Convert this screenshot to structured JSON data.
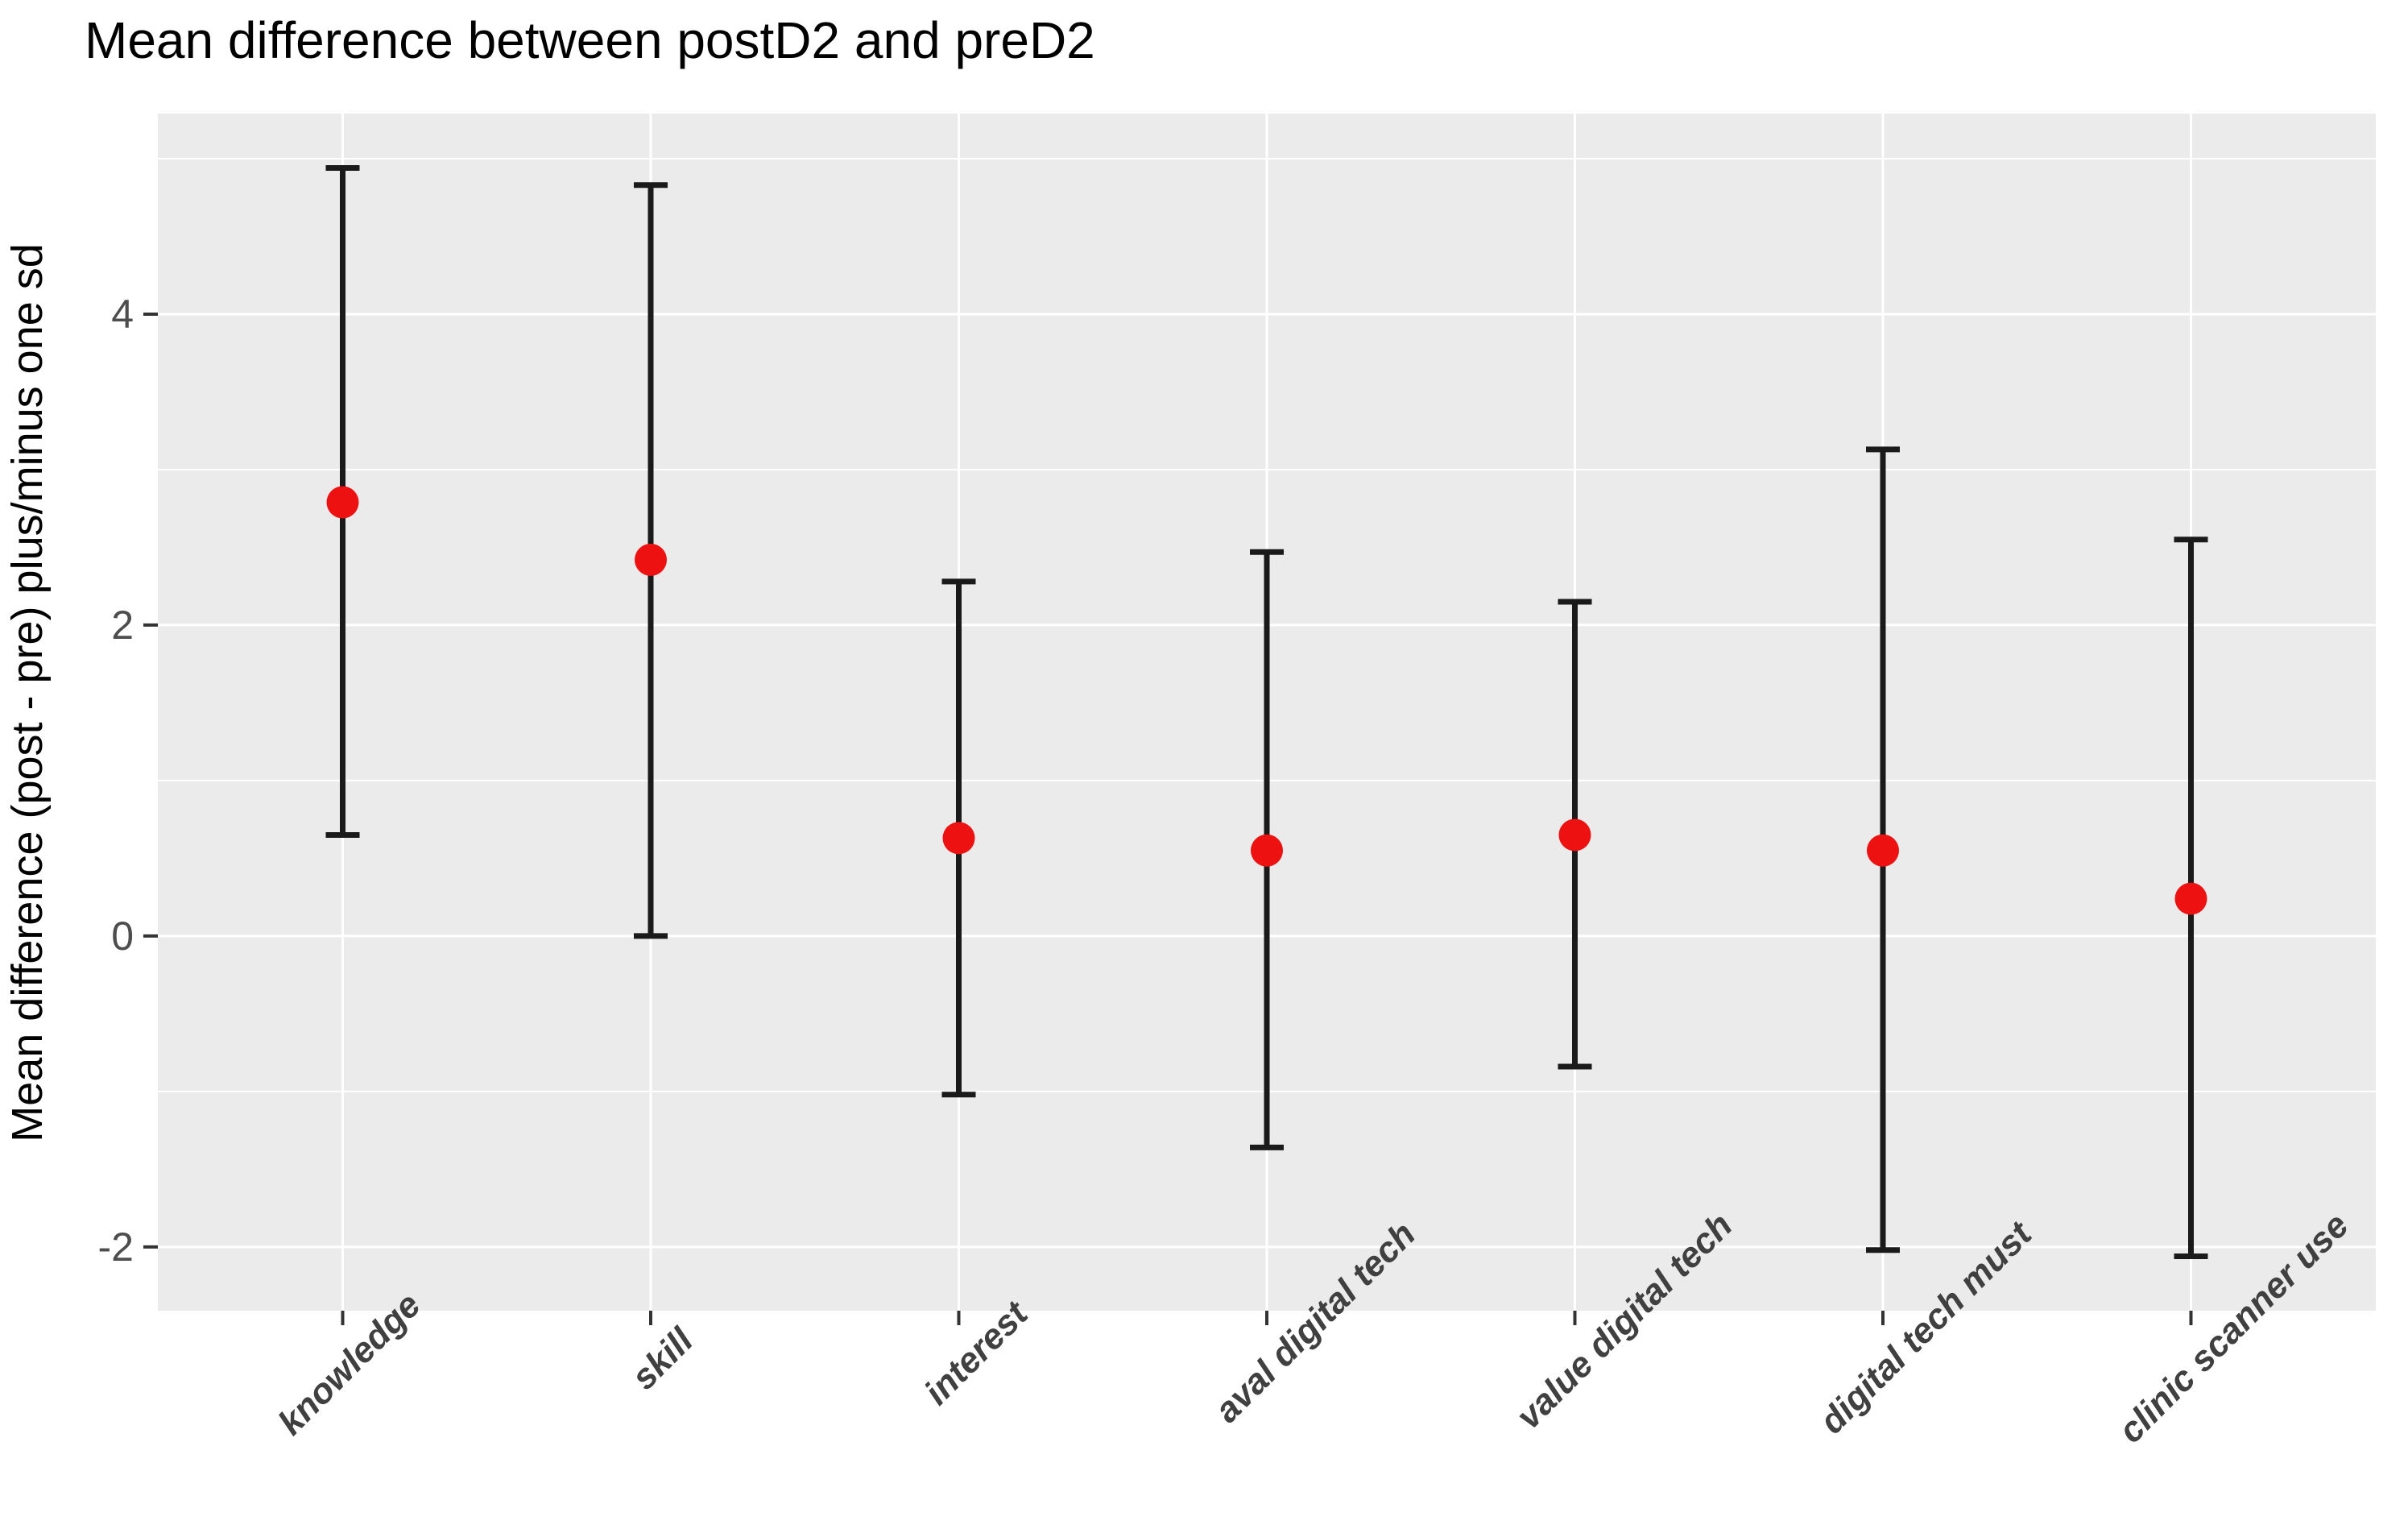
{
  "title": "Mean difference between postD2 and preD2",
  "y_axis_label": "Mean difference (post - pre) plus/minus one sd",
  "chart_data": {
    "type": "pointrange",
    "title": "Mean difference between postD2 and preD2",
    "xlabel": "",
    "ylabel": "Mean difference (post - pre) plus/minus one sd",
    "categories": [
      "knowledge",
      "skill",
      "interest",
      "aval digital tech",
      "value digital tech",
      "digital tech must",
      "clinic scanner use"
    ],
    "series": [
      {
        "name": "mean difference (post - pre)",
        "values": [
          2.79,
          2.42,
          0.63,
          0.55,
          0.65,
          0.55,
          0.24
        ]
      }
    ],
    "error_low": [
      0.65,
      0.0,
      -1.02,
      -1.36,
      -0.84,
      -2.02,
      -2.06
    ],
    "error_high": [
      4.94,
      4.83,
      2.28,
      2.47,
      2.15,
      3.13,
      2.55
    ],
    "sd": [
      2.15,
      2.42,
      1.65,
      1.92,
      1.5,
      2.58,
      2.31
    ],
    "ylim": [
      -2.41,
      5.29
    ],
    "y_ticks": [
      -2,
      0,
      2,
      4
    ],
    "y_tick_labels": [
      "-2",
      "0",
      "2",
      "4"
    ],
    "y_minor_ticks": [
      -1,
      1,
      3,
      5
    ],
    "grid": "major-and-minor, white on gray panel",
    "legend": "none",
    "x_label_angle_deg": 45,
    "colors": {
      "point": "#ee1111",
      "error_bar": "#1a1a1a",
      "panel_background": "#ebebeb",
      "gridline": "#ffffff",
      "tick_mark": "#333333",
      "y_tick_text": "#4d4d4d",
      "x_category_text": "#404040",
      "title_text": "#000000",
      "outer_background": "#ffffff"
    }
  }
}
